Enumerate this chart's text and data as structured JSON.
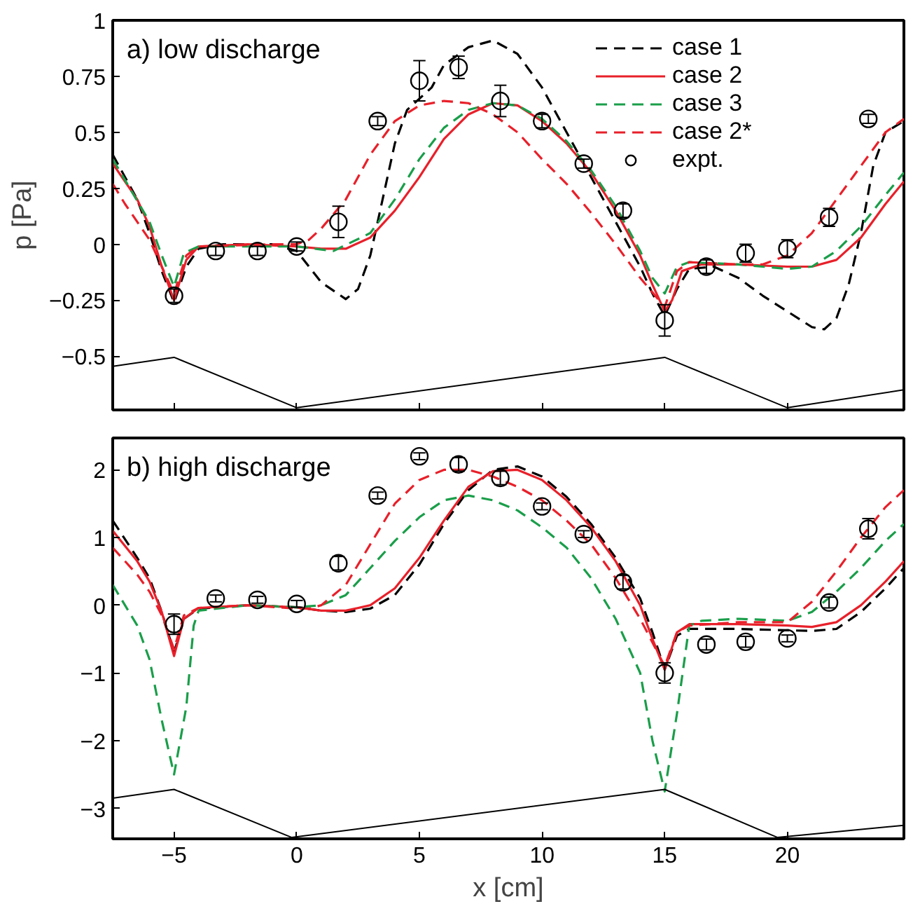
{
  "chart_data": [
    {
      "type": "line",
      "title": "a) low discharge",
      "ylabel": "p [Pa]",
      "xlim": [
        -7.5,
        24.75
      ],
      "ylim": [
        -0.74,
        1
      ],
      "xticks": [
        -5,
        0,
        5,
        10,
        15,
        20
      ],
      "yticks": [
        -0.5,
        -0.25,
        0,
        0.25,
        0.5,
        0.75,
        1
      ],
      "tick_labels": "y",
      "grid": false,
      "legend": "top right",
      "series": [
        {
          "name": "case 1",
          "color": "#000000",
          "line_style": "dashed",
          "marker": "none",
          "x": [
            -7.5,
            -6.5,
            -6,
            -5.5,
            -5,
            -4.5,
            -4,
            -3,
            -1,
            0,
            0.5,
            1,
            2,
            2.5,
            3,
            3.5,
            4,
            4.5,
            5.5,
            6,
            7,
            8,
            9,
            10,
            11,
            12,
            13,
            14,
            14.5,
            15,
            15.5,
            16,
            17,
            18,
            19,
            20,
            21,
            21.5,
            22,
            22.5,
            23,
            23.5,
            24,
            24.75
          ],
          "values": [
            0.4,
            0.2,
            0.05,
            -0.12,
            -0.26,
            -0.1,
            -0.02,
            0,
            0,
            -0.03,
            -0.1,
            -0.17,
            -0.245,
            -0.2,
            -0.05,
            0.2,
            0.45,
            0.6,
            0.7,
            0.8,
            0.88,
            0.91,
            0.85,
            0.7,
            0.5,
            0.3,
            0.1,
            -0.1,
            -0.22,
            -0.32,
            -0.2,
            -0.11,
            -0.1,
            -0.15,
            -0.23,
            -0.3,
            -0.37,
            -0.38,
            -0.33,
            -0.18,
            0.05,
            0.35,
            0.5,
            0.55
          ]
        },
        {
          "name": "case 2",
          "color": "#e8202a",
          "line_style": "solid",
          "marker": "none",
          "x": [
            -7.5,
            -6.5,
            -6,
            -5.5,
            -5,
            -4.5,
            -4,
            -2,
            0,
            1,
            2,
            3,
            4,
            5,
            6,
            7,
            8,
            9,
            10,
            11,
            12,
            13,
            14,
            14.5,
            15,
            15.3,
            15.7,
            16.5,
            18,
            20,
            21,
            22,
            23,
            24,
            24.75
          ],
          "values": [
            0.36,
            0.2,
            0.08,
            -0.1,
            -0.25,
            -0.07,
            -0.01,
            0,
            -0.01,
            -0.02,
            -0.02,
            0.03,
            0.15,
            0.3,
            0.47,
            0.58,
            0.63,
            0.62,
            0.55,
            0.45,
            0.32,
            0.15,
            -0.05,
            -0.18,
            -0.3,
            -0.25,
            -0.12,
            -0.09,
            -0.09,
            -0.1,
            -0.1,
            -0.07,
            0.03,
            0.18,
            0.28
          ]
        },
        {
          "name": "case 3",
          "color": "#1a9e4a",
          "line_style": "dashed",
          "marker": "none",
          "x": [
            -7.5,
            -6,
            -5.5,
            -5,
            -4.6,
            -4,
            0,
            1.5,
            3,
            4,
            5,
            6,
            7,
            8,
            9,
            10,
            11,
            12,
            13,
            14,
            14.5,
            15,
            15.5,
            16,
            18,
            20,
            21,
            22,
            23,
            24,
            24.75
          ],
          "values": [
            0.38,
            0.1,
            -0.05,
            -0.19,
            -0.04,
            -0.01,
            -0.01,
            -0.03,
            0.05,
            0.2,
            0.38,
            0.52,
            0.6,
            0.63,
            0.62,
            0.56,
            0.46,
            0.33,
            0.17,
            -0.03,
            -0.15,
            -0.22,
            -0.1,
            -0.08,
            -0.09,
            -0.11,
            -0.1,
            -0.03,
            0.08,
            0.22,
            0.32
          ]
        },
        {
          "name": "case 2*",
          "color": "#e8202a",
          "line_style": "dashed",
          "marker": "none",
          "x": [
            -7.5,
            -7,
            -6,
            -5.5,
            -5,
            -4.5,
            -4,
            -1,
            0,
            0.5,
            1,
            2,
            3,
            4,
            5,
            6,
            7,
            8,
            9,
            10,
            11,
            12,
            13,
            14,
            15,
            15.5,
            16,
            18,
            19,
            20,
            21,
            22,
            23,
            24,
            24.75
          ],
          "values": [
            0.27,
            0.18,
            0.02,
            -0.1,
            -0.22,
            -0.05,
            -0.01,
            0,
            0,
            0.02,
            0.07,
            0.2,
            0.4,
            0.55,
            0.62,
            0.64,
            0.63,
            0.58,
            0.5,
            0.38,
            0.27,
            0.14,
            0,
            -0.15,
            -0.28,
            -0.12,
            -0.08,
            -0.09,
            -0.09,
            -0.05,
            0.05,
            0.2,
            0.35,
            0.5,
            0.56
          ]
        },
        {
          "name": "expt.",
          "type": "scatter",
          "color": "#000000",
          "marker": "circle",
          "x": [
            -5,
            -3.3,
            -1.6,
            0,
            1.7,
            3.3,
            5,
            6.6,
            8.3,
            10,
            11.7,
            13.3,
            15,
            16.7,
            18.3,
            20,
            21.7,
            23.3
          ],
          "values": [
            -0.23,
            -0.03,
            -0.03,
            -0.01,
            0.1,
            0.55,
            0.73,
            0.79,
            0.64,
            0.55,
            0.36,
            0.15,
            -0.34,
            -0.1,
            -0.04,
            -0.02,
            0.12,
            0.56
          ],
          "errors": [
            0.03,
            0.02,
            0.02,
            0.02,
            0.07,
            0.02,
            0.09,
            0.05,
            0.07,
            0.03,
            0.02,
            0.03,
            0.07,
            0.03,
            0.04,
            0.04,
            0.04,
            0.02
          ]
        },
        {
          "color": "#000000",
          "line_style": "solid",
          "marker": "none",
          "x": [
            -7.5,
            -5,
            0,
            15,
            20,
            24.75
          ],
          "values": [
            -0.545,
            -0.505,
            -0.73,
            -0.505,
            -0.73,
            -0.65
          ]
        }
      ]
    },
    {
      "type": "line",
      "title": "b) high discharge",
      "xlabel": "x [cm]",
      "xlim": [
        -7.5,
        24.75
      ],
      "ylim": [
        -3.45,
        2.47
      ],
      "xticks": [
        -5,
        0,
        5,
        10,
        15,
        20
      ],
      "yticks": [
        -3,
        -2,
        -1,
        0,
        1,
        2
      ],
      "grid": false,
      "series": [
        {
          "color": "#000000",
          "line_style": "dashed",
          "marker": "none",
          "x": [
            -7.5,
            -6.5,
            -6,
            -5.5,
            -5,
            -4.6,
            -4,
            -2,
            0,
            1,
            2,
            3,
            4,
            5,
            6,
            7,
            8,
            9,
            10,
            11,
            12,
            13,
            14,
            14.5,
            15,
            15.5,
            16,
            18,
            20,
            21,
            22,
            23,
            24,
            24.75
          ],
          "values": [
            1.25,
            0.7,
            0.4,
            -0.1,
            -0.7,
            -0.2,
            -0.05,
            0,
            -0.03,
            -0.08,
            -0.1,
            -0.05,
            0.15,
            0.6,
            1.2,
            1.7,
            2.0,
            2.05,
            1.9,
            1.6,
            1.2,
            0.7,
            0.1,
            -0.4,
            -0.95,
            -0.45,
            -0.35,
            -0.35,
            -0.37,
            -0.38,
            -0.35,
            -0.1,
            0.25,
            0.55
          ]
        },
        {
          "color": "#e8202a",
          "line_style": "solid",
          "marker": "none",
          "x": [
            -7.5,
            -6.5,
            -6,
            -5.5,
            -5,
            -4.6,
            -4,
            -2,
            0,
            1,
            2,
            3,
            4,
            5,
            6,
            7,
            8,
            9,
            10,
            11,
            12,
            13,
            14,
            14.5,
            15,
            15.5,
            16,
            18,
            20,
            21,
            22,
            23,
            24,
            24.75
          ],
          "values": [
            1.1,
            0.65,
            0.35,
            -0.1,
            -0.75,
            -0.2,
            -0.04,
            0,
            -0.03,
            -0.08,
            -0.08,
            0,
            0.25,
            0.7,
            1.25,
            1.75,
            1.98,
            2.0,
            1.85,
            1.55,
            1.15,
            0.65,
            0,
            -0.5,
            -0.95,
            -0.4,
            -0.28,
            -0.28,
            -0.3,
            -0.32,
            -0.25,
            0,
            0.35,
            0.65
          ]
        },
        {
          "color": "#1a9e4a",
          "line_style": "dashed",
          "marker": "none",
          "x": [
            -7.5,
            -6.5,
            -6,
            -5.5,
            -5,
            -4.5,
            -4.2,
            -4,
            -2,
            0,
            1,
            2,
            3,
            4,
            5,
            6,
            7,
            8,
            9,
            10,
            11,
            12,
            13,
            14,
            14.5,
            15,
            15.5,
            16,
            16.5,
            18,
            20,
            21,
            22,
            23,
            24,
            24.75
          ],
          "values": [
            0.3,
            -0.3,
            -0.8,
            -1.7,
            -2.5,
            -1.5,
            -0.3,
            -0.08,
            0,
            -0.03,
            0,
            0.15,
            0.55,
            0.95,
            1.3,
            1.55,
            1.62,
            1.55,
            1.4,
            1.15,
            0.85,
            0.4,
            -0.2,
            -1.0,
            -2.0,
            -2.75,
            -1.6,
            -0.3,
            -0.23,
            -0.2,
            -0.23,
            -0.1,
            0.2,
            0.55,
            0.95,
            1.2
          ]
        },
        {
          "color": "#e8202a",
          "line_style": "dashed",
          "marker": "none",
          "x": [
            -7.5,
            -6.5,
            -6,
            -5.5,
            -5,
            -4.6,
            -4,
            -2,
            0,
            0.5,
            1,
            2,
            3,
            4,
            5,
            6,
            7,
            8,
            9,
            10,
            11,
            12,
            13,
            14,
            15,
            15.5,
            16,
            18,
            20,
            21,
            22,
            23,
            24,
            24.75
          ],
          "values": [
            0.85,
            0.45,
            0.2,
            -0.15,
            -0.65,
            -0.15,
            -0.04,
            0,
            -0.05,
            -0.05,
            0,
            0.3,
            0.9,
            1.5,
            1.85,
            2.0,
            2.0,
            1.9,
            1.75,
            1.55,
            1.25,
            0.9,
            0.4,
            -0.2,
            -0.9,
            -0.4,
            -0.3,
            -0.25,
            -0.25,
            0.05,
            0.5,
            1.0,
            1.45,
            1.7
          ]
        },
        {
          "type": "scatter",
          "color": "#000000",
          "marker": "circle",
          "x": [
            -5,
            -3.3,
            -1.6,
            0,
            1.7,
            3.3,
            5,
            6.6,
            8.3,
            10,
            11.7,
            13.3,
            15,
            16.7,
            18.3,
            20,
            21.7,
            23.3
          ],
          "values": [
            -0.28,
            0.1,
            0.08,
            0.02,
            0.62,
            1.62,
            2.2,
            2.08,
            1.88,
            1.46,
            1.05,
            0.34,
            -1.0,
            -0.58,
            -0.54,
            -0.49,
            0.04,
            1.13
          ],
          "errors": [
            0.15,
            0.05,
            0.05,
            0.05,
            0.1,
            0.05,
            0.05,
            0.1,
            0.1,
            0.05,
            0.05,
            0.1,
            0.15,
            0.08,
            0.08,
            0.05,
            0.08,
            0.15
          ]
        },
        {
          "color": "#000000",
          "line_style": "solid",
          "marker": "none",
          "x": [
            -7.5,
            -5,
            -0.2,
            15,
            19.6,
            24.75
          ],
          "values": [
            -2.85,
            -2.72,
            -3.43,
            -2.72,
            -3.43,
            -3.25
          ]
        }
      ]
    }
  ]
}
